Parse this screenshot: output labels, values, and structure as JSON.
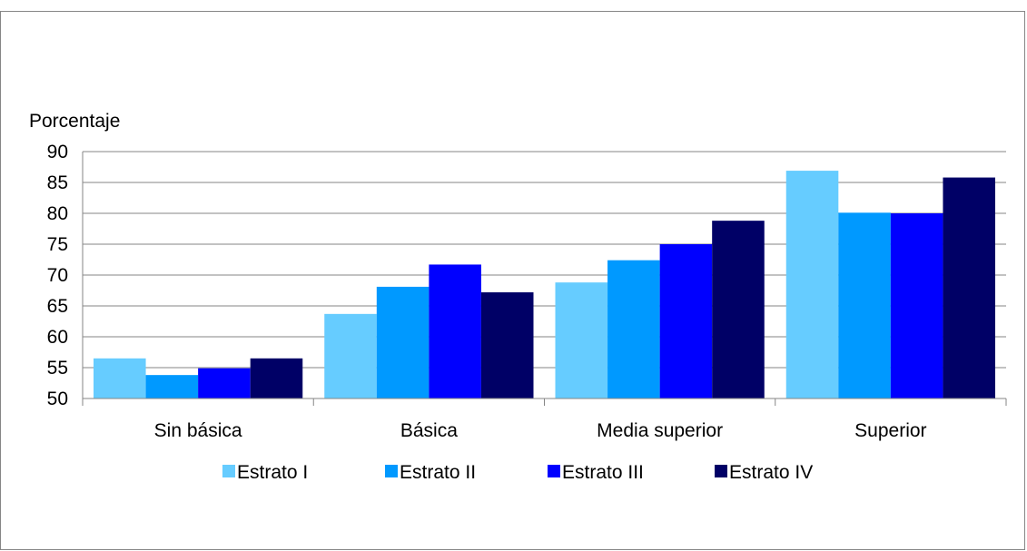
{
  "chart_data": {
    "type": "bar",
    "title": "",
    "xlabel": "",
    "ylabel": "Porcentaje",
    "ylim": [
      50,
      90
    ],
    "yticks": [
      50,
      55,
      60,
      65,
      70,
      75,
      80,
      85,
      90
    ],
    "grid": true,
    "legend_position": "bottom",
    "categories": [
      "Sin básica",
      "Básica",
      "Media superior",
      "Superior"
    ],
    "series": [
      {
        "name": "Estrato I",
        "color": "#66CCFF",
        "values": [
          56.5,
          63.7,
          68.8,
          86.9
        ]
      },
      {
        "name": "Estrato II",
        "color": "#0099FF",
        "values": [
          53.8,
          68.1,
          72.4,
          80.1
        ]
      },
      {
        "name": "Estrato III",
        "color": "#0000FF",
        "values": [
          54.9,
          71.7,
          75.0,
          80.0
        ]
      },
      {
        "name": "Estrato IV",
        "color": "#000066",
        "values": [
          56.5,
          67.2,
          78.8,
          85.8
        ]
      }
    ]
  }
}
